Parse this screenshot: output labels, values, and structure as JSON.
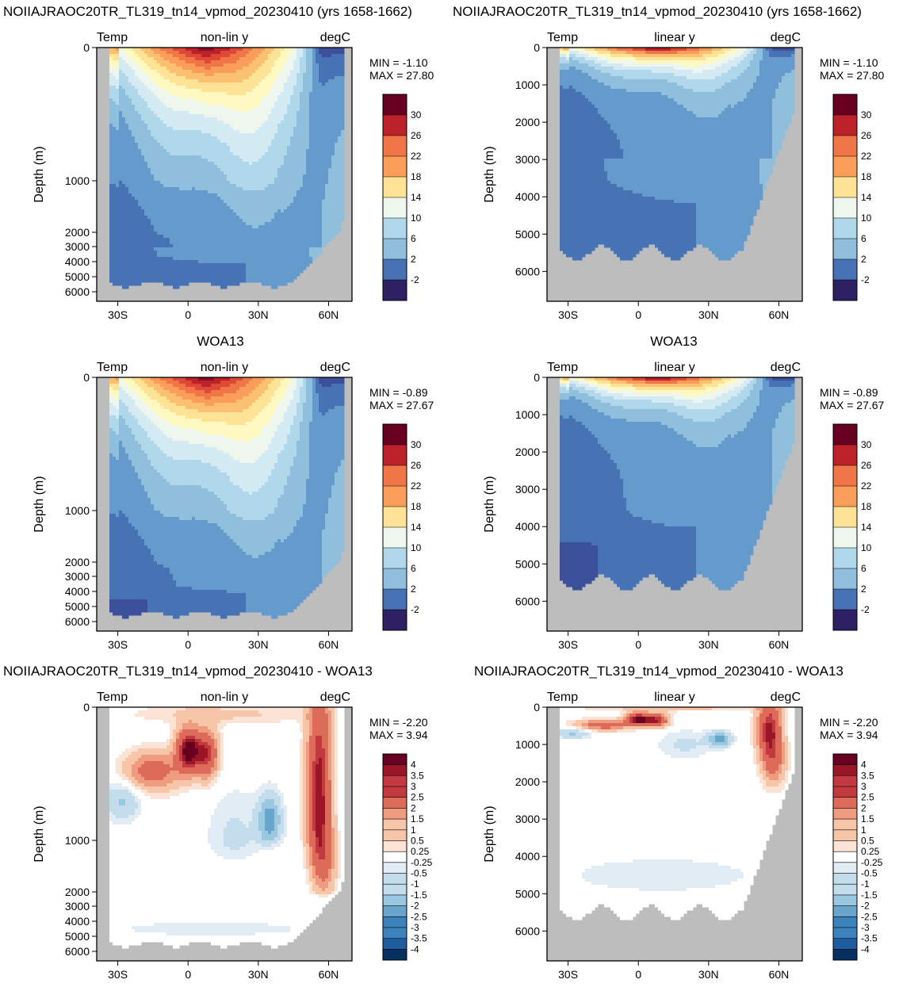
{
  "figure": {
    "row_titles": [
      "NOIIAJRAOC20TR_TL319_tn14_vpmod_20230410 (yrs 1658-1662)",
      "WOA13",
      "NOIIAJRAOC20TR_TL319_tn14_vpmod_20230410 - WOA13"
    ]
  },
  "colors": {
    "land": "#bdbdbd",
    "temp_scale": [
      "#2d2063",
      "#3c4f99",
      "#4772b3",
      "#659bcc",
      "#8fbfdc",
      "#b1d8ea",
      "#d5ebf3",
      "#eef6ee",
      "#fdf7c0",
      "#fee295",
      "#fcc071",
      "#f99d59",
      "#f07648",
      "#dd4935",
      "#bd2129",
      "#8c0c25",
      "#67001f"
    ],
    "diff_scale": [
      "#053061",
      "#1f5c9d",
      "#3c82bc",
      "#6aa5cd",
      "#9ac8e0",
      "#c3ddec",
      "#e1ecf5",
      "#ffffff",
      "#fbe4d6",
      "#f7c6a8",
      "#ee9b7f",
      "#dc6b5a",
      "#c23a3f",
      "#9a1528",
      "#67001f"
    ]
  },
  "chart_data": [
    {
      "type": "heatmap",
      "title": "NOIIAJRAOC20TR_TL319_tn14_vpmod_20230410 (yrs 1658-1662)",
      "left_label": "Temp",
      "center_label": "non-lin y",
      "right_label": "degC",
      "ylabel": "Depth (m)",
      "x_ticks": [
        "30S",
        "0",
        "30N",
        "60N"
      ],
      "x_tick_values": [
        -30,
        0,
        30,
        60
      ],
      "xlim": [
        -39,
        70
      ],
      "y_ticks": [
        "0",
        "1000",
        "2000",
        "3000",
        "4000",
        "5000",
        "6000"
      ],
      "y_tick_values": [
        0,
        1000,
        2000,
        3000,
        4000,
        5000,
        6000
      ],
      "y_scale": "non-linear",
      "ylim": [
        0,
        6600
      ],
      "min_label": "MIN = -1.10",
      "max_label": "MAX = 27.80",
      "min": -1.1,
      "max": 27.8,
      "colorbar": {
        "labels": [
          "30",
          "26",
          "22",
          "18",
          "14",
          "10",
          "6",
          "2",
          "-2"
        ],
        "levels": [
          30,
          26,
          22,
          18,
          14,
          10,
          6,
          2,
          -2
        ]
      },
      "field": "model"
    },
    {
      "type": "heatmap",
      "title": "",
      "left_label": "Temp",
      "center_label": "linear y",
      "right_label": "degC",
      "ylabel": "Depth (m)",
      "x_ticks": [
        "30S",
        "0",
        "30N",
        "60N"
      ],
      "x_tick_values": [
        -30,
        0,
        30,
        60
      ],
      "xlim": [
        -39,
        70
      ],
      "y_ticks": [
        "0",
        "1000",
        "2000",
        "3000",
        "4000",
        "5000",
        "6000"
      ],
      "y_tick_values": [
        0,
        1000,
        2000,
        3000,
        4000,
        5000,
        6000
      ],
      "y_scale": "linear",
      "ylim": [
        0,
        6800
      ],
      "min_label": "MIN = -1.10",
      "max_label": "MAX = 27.80",
      "min": -1.1,
      "max": 27.8,
      "colorbar": {
        "labels": [
          "30",
          "26",
          "22",
          "18",
          "14",
          "10",
          "6",
          "2",
          "-2"
        ],
        "levels": [
          30,
          26,
          22,
          18,
          14,
          10,
          6,
          2,
          -2
        ]
      },
      "field": "model"
    },
    {
      "type": "heatmap",
      "title": "WOA13",
      "left_label": "Temp",
      "center_label": "non-lin y",
      "right_label": "degC",
      "ylabel": "Depth (m)",
      "x_ticks": [
        "30S",
        "0",
        "30N",
        "60N"
      ],
      "x_tick_values": [
        -30,
        0,
        30,
        60
      ],
      "xlim": [
        -39,
        70
      ],
      "y_ticks": [
        "0",
        "1000",
        "2000",
        "3000",
        "4000",
        "5000",
        "6000"
      ],
      "y_tick_values": [
        0,
        1000,
        2000,
        3000,
        4000,
        5000,
        6000
      ],
      "y_scale": "non-linear",
      "ylim": [
        0,
        6600
      ],
      "min_label": "MIN = -0.89",
      "max_label": "MAX = 27.67",
      "min": -0.89,
      "max": 27.67,
      "colorbar": {
        "labels": [
          "30",
          "26",
          "22",
          "18",
          "14",
          "10",
          "6",
          "2",
          "-2"
        ],
        "levels": [
          30,
          26,
          22,
          18,
          14,
          10,
          6,
          2,
          -2
        ]
      },
      "field": "obs"
    },
    {
      "type": "heatmap",
      "title": "",
      "left_label": "Temp",
      "center_label": "linear y",
      "right_label": "degC",
      "ylabel": "Depth (m)",
      "x_ticks": [
        "30S",
        "0",
        "30N",
        "60N"
      ],
      "x_tick_values": [
        -30,
        0,
        30,
        60
      ],
      "xlim": [
        -39,
        70
      ],
      "y_ticks": [
        "0",
        "1000",
        "2000",
        "3000",
        "4000",
        "5000",
        "6000"
      ],
      "y_tick_values": [
        0,
        1000,
        2000,
        3000,
        4000,
        5000,
        6000
      ],
      "y_scale": "linear",
      "ylim": [
        0,
        6800
      ],
      "min_label": "MIN = -0.89",
      "max_label": "MAX = 27.67",
      "min": -0.89,
      "max": 27.67,
      "colorbar": {
        "labels": [
          "30",
          "26",
          "22",
          "18",
          "14",
          "10",
          "6",
          "2",
          "-2"
        ],
        "levels": [
          30,
          26,
          22,
          18,
          14,
          10,
          6,
          2,
          -2
        ]
      },
      "field": "obs"
    },
    {
      "type": "heatmap",
      "title": "NOIIAJRAOC20TR_TL319_tn14_vpmod_20230410 - WOA13",
      "left_label": "Temp",
      "center_label": "non-lin y",
      "right_label": "degC",
      "ylabel": "Depth (m)",
      "x_ticks": [
        "30S",
        "0",
        "30N",
        "60N"
      ],
      "x_tick_values": [
        -30,
        0,
        30,
        60
      ],
      "xlim": [
        -39,
        70
      ],
      "y_ticks": [
        "0",
        "1000",
        "2000",
        "3000",
        "4000",
        "5000",
        "6000"
      ],
      "y_tick_values": [
        0,
        1000,
        2000,
        3000,
        4000,
        5000,
        6000
      ],
      "y_scale": "non-linear",
      "ylim": [
        0,
        6600
      ],
      "min_label": "MIN = -2.20",
      "max_label": "MAX =  3.94",
      "min": -2.2,
      "max": 3.94,
      "colorbar": {
        "labels": [
          "4",
          "3.5",
          "3",
          "2.5",
          "2",
          "1.5",
          "1",
          "0.5",
          "0.25",
          "-0.25",
          "-0.5",
          "-1",
          "-1.5",
          "-2",
          "-2.5",
          "-3",
          "-3.5",
          "-4"
        ],
        "levels": [
          4,
          3.5,
          3,
          2.5,
          2,
          1.5,
          1,
          0.5,
          0.25,
          -0.25,
          -0.5,
          -1,
          -1.5,
          -2,
          -2.5,
          -3,
          -3.5,
          -4
        ]
      },
      "field": "diff"
    },
    {
      "type": "heatmap",
      "title": "NOIIAJRAOC20TR_TL319_tn14_vpmod_20230410 - WOA13",
      "left_label": "Temp",
      "center_label": "linear y",
      "right_label": "degC",
      "ylabel": "Depth (m)",
      "x_ticks": [
        "30S",
        "0",
        "30N",
        "60N"
      ],
      "x_tick_values": [
        -30,
        0,
        30,
        60
      ],
      "xlim": [
        -39,
        70
      ],
      "y_ticks": [
        "0",
        "1000",
        "2000",
        "3000",
        "4000",
        "5000",
        "6000"
      ],
      "y_tick_values": [
        0,
        1000,
        2000,
        3000,
        4000,
        5000,
        6000
      ],
      "y_scale": "linear",
      "ylim": [
        0,
        6800
      ],
      "min_label": "MIN = -2.20",
      "max_label": "MAX =  3.94",
      "min": -2.2,
      "max": 3.94,
      "colorbar": {
        "labels": [
          "4",
          "3.5",
          "3",
          "2.5",
          "2",
          "1.5",
          "1",
          "0.5",
          "0.25",
          "-0.25",
          "-0.5",
          "-1",
          "-1.5",
          "-2",
          "-2.5",
          "-3",
          "-3.5",
          "-4"
        ],
        "levels": [
          4,
          3.5,
          3,
          2.5,
          2,
          1.5,
          1,
          0.5,
          0.25,
          -0.25,
          -0.5,
          -1,
          -1.5,
          -2,
          -2.5,
          -3,
          -3.5,
          -4
        ]
      },
      "field": "diff"
    }
  ]
}
